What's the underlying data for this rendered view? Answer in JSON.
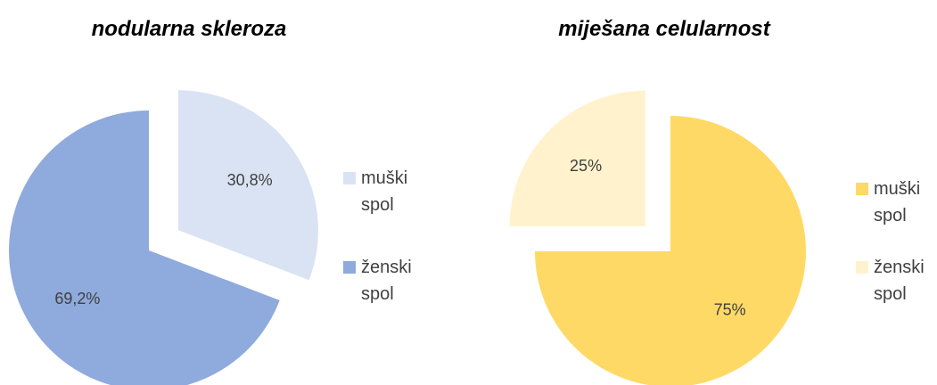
{
  "chart_data": [
    {
      "type": "pie",
      "title": "nodularna skleroza",
      "categories": [
        "muški spol",
        "ženski spol"
      ],
      "values": [
        30.8,
        69.2
      ],
      "value_labels": [
        "30,8%",
        "69,2%"
      ],
      "colors": [
        "#dae3f3",
        "#8faadc"
      ],
      "legend": "right"
    },
    {
      "type": "pie",
      "title": "miješana celularnost",
      "categories": [
        "muški spol",
        "ženski spol"
      ],
      "values": [
        75,
        25
      ],
      "value_labels": [
        "75%",
        "25%"
      ],
      "colors": [
        "#ffd966",
        "#fff2cc"
      ],
      "legend": "right"
    }
  ]
}
